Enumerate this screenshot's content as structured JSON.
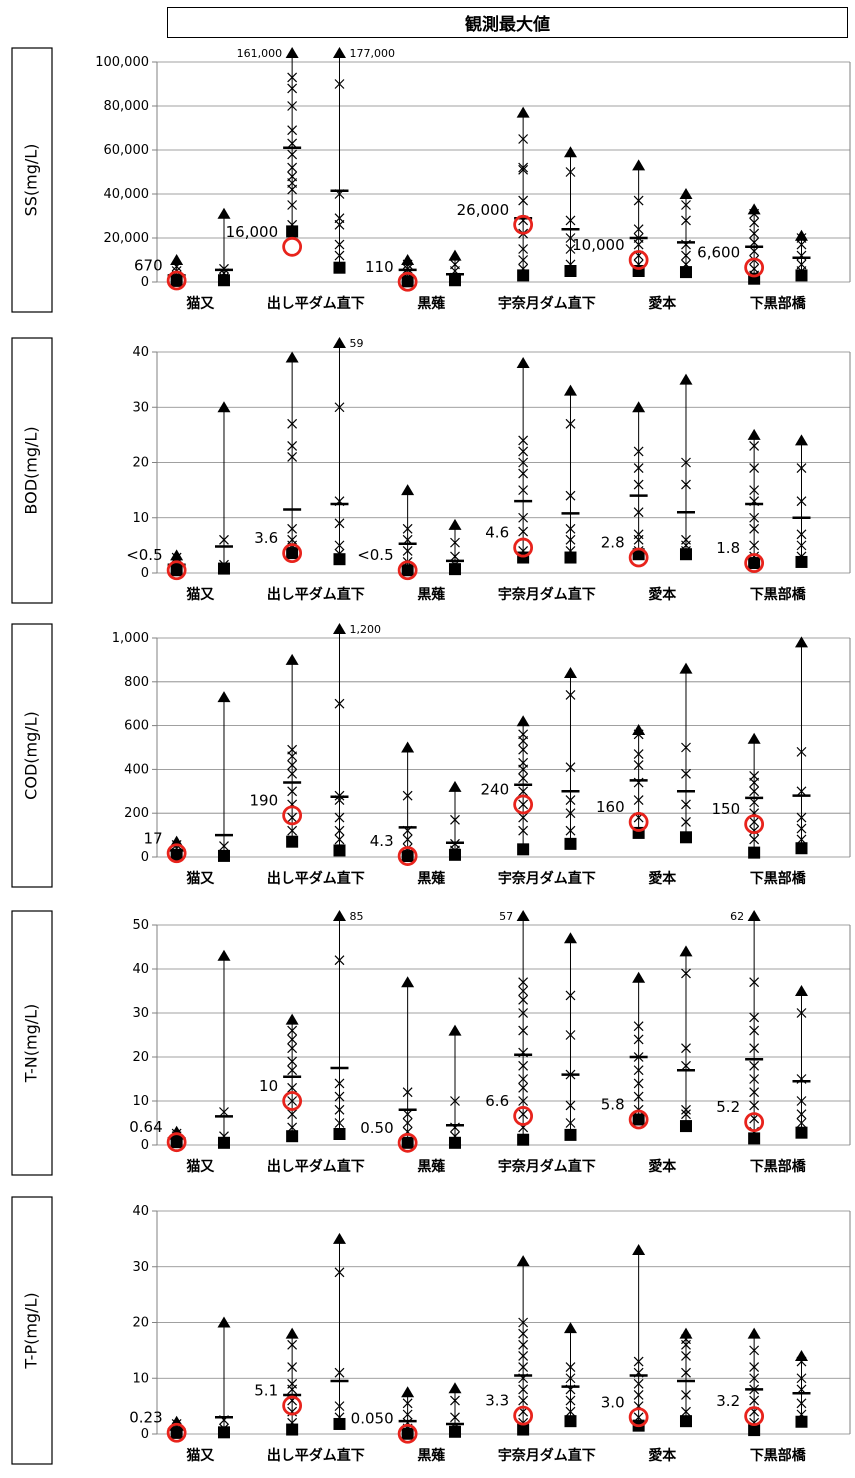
{
  "banner_title": "観測最大値",
  "chart_data": [
    {
      "type": "scatter",
      "ylabel": "SS(mg/L)",
      "ylim": [
        0,
        100000
      ],
      "yticks": [
        0,
        20000,
        40000,
        60000,
        80000,
        100000
      ],
      "ytick_labels": [
        "0",
        "20,000",
        "40,000",
        "60,000",
        "80,000",
        "100,000"
      ],
      "categories": [
        "猫又",
        "出し平ダム直下",
        "黒薙",
        "宇奈月ダム直下",
        "愛本",
        "下黒部橋"
      ],
      "groups": [
        {
          "min": 500,
          "max": 10000,
          "mean": 3000,
          "samples": [
            1500,
            3000,
            5000,
            7000
          ]
        },
        {
          "min": 800,
          "max": 31000,
          "mean": 5500,
          "samples": [
            2000,
            4000,
            6000
          ]
        },
        {
          "min": 23000,
          "max": 161000,
          "mean": 61000,
          "samples": [
            26000,
            35000,
            42000,
            45000,
            48000,
            52000,
            58000,
            63000,
            69000,
            80000,
            88000,
            93000
          ]
        },
        {
          "min": 6500,
          "max": 177000,
          "mean": 41500,
          "samples": [
            12000,
            17000,
            26000,
            29000,
            40000,
            90000
          ]
        },
        {
          "min": 300,
          "max": 10000,
          "mean": 5500,
          "samples": [
            2000,
            4000,
            6000,
            8000
          ]
        },
        {
          "min": 800,
          "max": 12000,
          "mean": 3500,
          "samples": [
            2000,
            5000,
            8000
          ]
        },
        {
          "min": 3000,
          "max": 77000,
          "mean": 29000,
          "samples": [
            6000,
            10000,
            15000,
            22000,
            28000,
            37000,
            51000,
            52000,
            65000
          ]
        },
        {
          "min": 5000,
          "max": 59000,
          "mean": 24000,
          "samples": [
            8000,
            15000,
            20000,
            28000,
            50000
          ]
        },
        {
          "min": 5000,
          "max": 53000,
          "mean": 20000,
          "samples": [
            8000,
            12000,
            17000,
            20000,
            24000,
            37000
          ]
        },
        {
          "min": 4500,
          "max": 40000,
          "mean": 18000,
          "samples": [
            8000,
            12000,
            17000,
            28000,
            35000
          ]
        },
        {
          "min": 1500,
          "max": 33000,
          "mean": 16000,
          "samples": [
            3000,
            6000,
            10000,
            14000,
            18000,
            22000,
            27000,
            31000
          ]
        },
        {
          "min": 3000,
          "max": 21000,
          "mean": 11000,
          "samples": [
            5000,
            8000,
            12000,
            17000,
            20000
          ]
        }
      ],
      "observed_max": [
        670,
        16000,
        110,
        26000,
        10000,
        6600
      ],
      "observed_max_labels": [
        "670",
        "16,000",
        "110",
        "26,000",
        "10,000",
        "6,600"
      ],
      "offscale": [
        {
          "group": 2,
          "label": "161,000"
        },
        {
          "group": 3,
          "label": "177,000"
        }
      ]
    },
    {
      "type": "scatter",
      "ylabel": "BOD(mg/L)",
      "ylim": [
        0,
        40
      ],
      "yticks": [
        0,
        10,
        20,
        30,
        40
      ],
      "ytick_labels": [
        "0",
        "10",
        "20",
        "30",
        "40"
      ],
      "categories": [
        "猫又",
        "出し平ダム直下",
        "黒薙",
        "宇奈月ダム直下",
        "愛本",
        "下黒部橋"
      ],
      "groups": [
        {
          "min": 0.5,
          "max": 3.2,
          "mean": 1.5,
          "samples": [
            1,
            2,
            2.8
          ]
        },
        {
          "min": 0.8,
          "max": 30,
          "mean": 4.8,
          "samples": [
            1.5,
            6
          ]
        },
        {
          "min": 3.6,
          "max": 39,
          "mean": 11.5,
          "samples": [
            5,
            6,
            8,
            21,
            23,
            27
          ]
        },
        {
          "min": 2.5,
          "max": 59,
          "mean": 12.5,
          "samples": [
            3.5,
            5,
            9,
            13,
            30
          ]
        },
        {
          "min": 0.5,
          "max": 15,
          "mean": 5.3,
          "samples": [
            2,
            4,
            6,
            8
          ]
        },
        {
          "min": 0.7,
          "max": 8.7,
          "mean": 2.2,
          "samples": [
            1.5,
            3,
            5.5
          ]
        },
        {
          "min": 2.8,
          "max": 38,
          "mean": 13,
          "samples": [
            4,
            7.5,
            10,
            15,
            18,
            20,
            22,
            24
          ]
        },
        {
          "min": 2.8,
          "max": 33,
          "mean": 10.8,
          "samples": [
            4,
            6,
            8,
            14,
            27
          ]
        },
        {
          "min": 3.4,
          "max": 30,
          "mean": 14,
          "samples": [
            4,
            6,
            7,
            11,
            16,
            19,
            22
          ]
        },
        {
          "min": 3.4,
          "max": 35,
          "mean": 11,
          "samples": [
            4,
            5,
            6,
            16,
            20
          ]
        },
        {
          "min": 1.8,
          "max": 25,
          "mean": 12.5,
          "samples": [
            3,
            5,
            8,
            10,
            13,
            15,
            19,
            23
          ]
        },
        {
          "min": 2,
          "max": 24,
          "mean": 10,
          "samples": [
            3,
            5,
            7,
            13,
            19
          ]
        }
      ],
      "observed_max": [
        0.5,
        3.6,
        0.5,
        4.6,
        2.8,
        1.8
      ],
      "observed_max_labels": [
        "<0.5",
        "3.6",
        "<0.5",
        "4.6",
        "2.8",
        "1.8"
      ],
      "offscale": [
        {
          "group": 3,
          "label": "59"
        }
      ]
    },
    {
      "type": "scatter",
      "ylabel": "COD(mg/L)",
      "ylim": [
        0,
        1000
      ],
      "yticks": [
        0,
        200,
        400,
        600,
        800,
        1000
      ],
      "ytick_labels": [
        "0",
        "200",
        "400",
        "600",
        "800",
        "1,000"
      ],
      "categories": [
        "猫又",
        "出し平ダム直下",
        "黒薙",
        "宇奈月ダム直下",
        "愛本",
        "下黒部橋"
      ],
      "groups": [
        {
          "min": 10,
          "max": 70,
          "mean": 30,
          "samples": [
            20,
            40,
            55
          ]
        },
        {
          "min": 5,
          "max": 730,
          "mean": 100,
          "samples": [
            50
          ]
        },
        {
          "min": 70,
          "max": 900,
          "mean": 340,
          "samples": [
            120,
            180,
            240,
            300,
            380,
            420,
            460,
            490
          ]
        },
        {
          "min": 30,
          "max": 1200,
          "mean": 275,
          "samples": [
            80,
            120,
            180,
            260,
            280,
            700
          ]
        },
        {
          "min": 4.3,
          "max": 500,
          "mean": 135,
          "samples": [
            40,
            80,
            120,
            280
          ]
        },
        {
          "min": 10,
          "max": 320,
          "mean": 65,
          "samples": [
            30,
            60,
            170
          ]
        },
        {
          "min": 35,
          "max": 620,
          "mean": 330,
          "samples": [
            120,
            180,
            240,
            300,
            360,
            400,
            430,
            490,
            530,
            560
          ]
        },
        {
          "min": 60,
          "max": 840,
          "mean": 300,
          "samples": [
            120,
            200,
            260,
            410,
            740
          ]
        },
        {
          "min": 110,
          "max": 580,
          "mean": 350,
          "samples": [
            180,
            260,
            340,
            420,
            470,
            560
          ]
        },
        {
          "min": 90,
          "max": 860,
          "mean": 300,
          "samples": [
            160,
            240,
            380,
            500
          ]
        },
        {
          "min": 20,
          "max": 540,
          "mean": 270,
          "samples": [
            80,
            120,
            160,
            200,
            250,
            300,
            340,
            370
          ]
        },
        {
          "min": 40,
          "max": 980,
          "mean": 280,
          "samples": [
            80,
            130,
            180,
            300,
            480
          ]
        }
      ],
      "observed_max": [
        17,
        190,
        4.3,
        240,
        160,
        150
      ],
      "observed_max_labels": [
        "17",
        "190",
        "4.3",
        "240",
        "160",
        "150"
      ],
      "offscale": [
        {
          "group": 3,
          "label": "1,200"
        }
      ]
    },
    {
      "type": "scatter",
      "ylabel": "T-N(mg/L)",
      "ylim": [
        0,
        50
      ],
      "yticks": [
        0,
        10,
        20,
        30,
        40,
        50
      ],
      "ytick_labels": [
        "0",
        "10",
        "20",
        "30",
        "40",
        "50"
      ],
      "categories": [
        "猫又",
        "出し平ダム直下",
        "黒薙",
        "宇奈月ダム直下",
        "愛本",
        "下黒部橋"
      ],
      "groups": [
        {
          "min": 0.64,
          "max": 3,
          "mean": 1.5,
          "samples": [
            1,
            2,
            2.6
          ]
        },
        {
          "min": 0.5,
          "max": 43,
          "mean": 6.5,
          "samples": [
            2,
            7.5
          ]
        },
        {
          "min": 2,
          "max": 28.5,
          "mean": 15.5,
          "samples": [
            4,
            7,
            10,
            13,
            17,
            19,
            22,
            24,
            26
          ]
        },
        {
          "min": 2.5,
          "max": 85,
          "mean": 17.5,
          "samples": [
            5,
            8,
            11,
            14,
            42
          ]
        },
        {
          "min": 0.5,
          "max": 37,
          "mean": 8,
          "samples": [
            3,
            5,
            7,
            12
          ]
        },
        {
          "min": 0.5,
          "max": 26,
          "mean": 4.5,
          "samples": [
            2,
            4,
            10
          ]
        },
        {
          "min": 1.2,
          "max": 57,
          "mean": 20.5,
          "samples": [
            4,
            7,
            10,
            13,
            15,
            18,
            21,
            26,
            30,
            33,
            35,
            37
          ]
        },
        {
          "min": 2.3,
          "max": 47,
          "mean": 16,
          "samples": [
            5,
            9,
            16,
            25,
            34
          ]
        },
        {
          "min": 5.8,
          "max": 38,
          "mean": 20,
          "samples": [
            8,
            11,
            14,
            17,
            20,
            24,
            27
          ]
        },
        {
          "min": 4.3,
          "max": 44,
          "mean": 17,
          "samples": [
            7,
            8,
            18,
            22,
            39
          ]
        },
        {
          "min": 1.5,
          "max": 62,
          "mean": 19.5,
          "samples": [
            3,
            6,
            9,
            12,
            15,
            18,
            22,
            26,
            29,
            37
          ]
        },
        {
          "min": 2.8,
          "max": 35,
          "mean": 14.5,
          "samples": [
            5,
            7,
            10,
            15,
            30
          ]
        }
      ],
      "observed_max": [
        0.64,
        10,
        0.5,
        6.6,
        5.8,
        5.2
      ],
      "observed_max_labels": [
        "0.64",
        "10",
        "0.50",
        "6.6",
        "5.8",
        "5.2"
      ],
      "offscale": [
        {
          "group": 3,
          "label": "85"
        },
        {
          "group": 6,
          "label": "57"
        },
        {
          "group": 10,
          "label": "62"
        }
      ]
    },
    {
      "type": "scatter",
      "ylabel": "T-P(mg/L)",
      "ylim": [
        0,
        40
      ],
      "yticks": [
        0,
        10,
        20,
        30,
        40
      ],
      "ytick_labels": [
        "0",
        "10",
        "20",
        "30",
        "40"
      ],
      "categories": [
        "猫又",
        "出し平ダム直下",
        "黒薙",
        "宇奈月ダム直下",
        "愛本",
        "下黒部橋"
      ],
      "groups": [
        {
          "min": 0.2,
          "max": 2.2,
          "mean": 0.8,
          "samples": [
            0.5,
            1.2,
            1.8
          ]
        },
        {
          "min": 0.3,
          "max": 20,
          "mean": 3,
          "samples": [
            1,
            2.5
          ]
        },
        {
          "min": 0.8,
          "max": 18,
          "mean": 7,
          "samples": [
            2,
            4,
            6,
            8,
            9,
            12,
            16
          ]
        },
        {
          "min": 1.8,
          "max": 35,
          "mean": 9.5,
          "samples": [
            3,
            5,
            11,
            29
          ]
        },
        {
          "min": 0.05,
          "max": 7.5,
          "mean": 2.3,
          "samples": [
            1,
            2,
            3.5,
            5.5
          ]
        },
        {
          "min": 0.4,
          "max": 8.2,
          "mean": 1.8,
          "samples": [
            1.2,
            3,
            6
          ]
        },
        {
          "min": 0.8,
          "max": 31,
          "mean": 10.5,
          "samples": [
            2,
            4,
            6,
            8,
            10,
            12,
            14,
            16,
            18,
            20
          ]
        },
        {
          "min": 2.3,
          "max": 19,
          "mean": 8.5,
          "samples": [
            4,
            6,
            8,
            10,
            12
          ]
        },
        {
          "min": 1.5,
          "max": 33,
          "mean": 10.5,
          "samples": [
            3,
            5,
            7,
            9,
            11,
            13
          ]
        },
        {
          "min": 2.3,
          "max": 18,
          "mean": 9.5,
          "samples": [
            4,
            7,
            11,
            14,
            16,
            17
          ]
        },
        {
          "min": 0.7,
          "max": 18,
          "mean": 8,
          "samples": [
            2,
            4,
            6,
            8,
            10,
            12,
            15
          ]
        },
        {
          "min": 2.2,
          "max": 14,
          "mean": 7.3,
          "samples": [
            3.5,
            5.5,
            8,
            10,
            13
          ]
        }
      ],
      "observed_max": [
        0.23,
        5.1,
        0.05,
        3.3,
        3.0,
        3.2
      ],
      "observed_max_labels": [
        "0.23",
        "5.1",
        "0.050",
        "3.3",
        "3.0",
        "3.2"
      ],
      "offscale": []
    }
  ],
  "colors": {
    "observed_max_circle": "#e8231c",
    "axis": "#808080",
    "grid": "#808080",
    "marker": "#000000"
  }
}
